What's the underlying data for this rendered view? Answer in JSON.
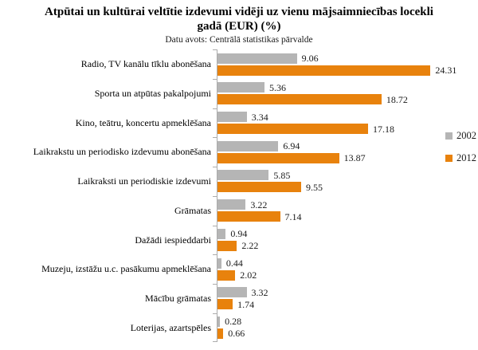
{
  "title": "Atpūtai un kultūrai veltītie izdevumi vidēji uz vienu mājsaimniecības locekli gadā (EUR) (%)",
  "subtitle": "Datu avots: Centrālā statistikas pārvalde",
  "colors": {
    "series_2002": "#b5b5b5",
    "series_2012": "#e8820d",
    "axis": "#acacac"
  },
  "chart_data": {
    "type": "bar",
    "orientation": "horizontal",
    "title": "Atpūtai un kultūrai veltītie izdevumi vidēji uz vienu mājsaimniecības locekli gadā (EUR) (%)",
    "subtitle": "Datu avots: Centrālā statistikas pārvalde",
    "categories": [
      "Radio, TV kanālu tīklu abonēšana",
      "Sporta un atpūtas pakalpojumi",
      "Kino, teātru, koncertu apmeklēšana",
      "Laikrakstu un periodisko izdevumu abonēšana",
      "Laikraksti un periodiskie izdevumi",
      "Grāmatas",
      "Dažādi iespieddarbi",
      "Muzeju, izstāžu u.c. pasākumu apmeklēšana",
      "Mācību grāmatas",
      "Loterijas, azartspēles"
    ],
    "series": [
      {
        "name": "2002",
        "color": "#b5b5b5",
        "values": [
          9.06,
          5.36,
          3.34,
          6.94,
          5.85,
          3.22,
          0.94,
          0.44,
          3.32,
          0.28
        ]
      },
      {
        "name": "2012",
        "color": "#e8820d",
        "values": [
          24.31,
          18.72,
          17.18,
          13.87,
          9.55,
          7.14,
          2.22,
          2.02,
          1.74,
          0.66
        ]
      }
    ],
    "value_labels": true,
    "xlim": [
      0,
      25
    ],
    "grid": false,
    "legend_position": "right"
  }
}
